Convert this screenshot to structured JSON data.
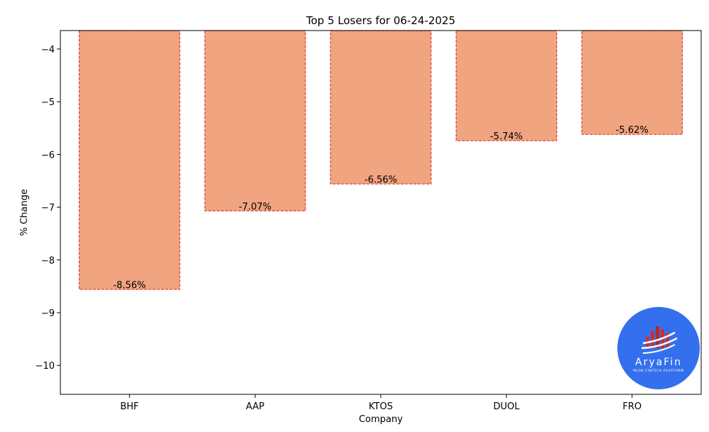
{
  "chart_data": {
    "type": "bar",
    "title": "Top 5 Losers for 06-24-2025",
    "xlabel": "Company",
    "ylabel": "% Change",
    "categories": [
      "BHF",
      "AAP",
      "KTOS",
      "DUOL",
      "FRO"
    ],
    "values": [
      -8.56,
      -7.07,
      -6.56,
      -5.74,
      -5.62
    ],
    "value_labels": [
      "-8.56%",
      "-7.07%",
      "-6.56%",
      "-5.74%",
      "-5.62%"
    ],
    "ylim": [
      -10.55,
      -3.65
    ],
    "yticks": [
      -4,
      -5,
      -6,
      -7,
      -8,
      -9,
      -10
    ],
    "ytick_labels": [
      "−4",
      "−5",
      "−6",
      "−7",
      "−8",
      "−9",
      "−10"
    ],
    "grid": false,
    "bar_fill": "#f0a47f",
    "bar_edge": "#e03a2f"
  },
  "watermark": {
    "name": "AryaFin",
    "tagline": "MLOK FINTECH PLATFORM",
    "color": "#3470ee"
  }
}
